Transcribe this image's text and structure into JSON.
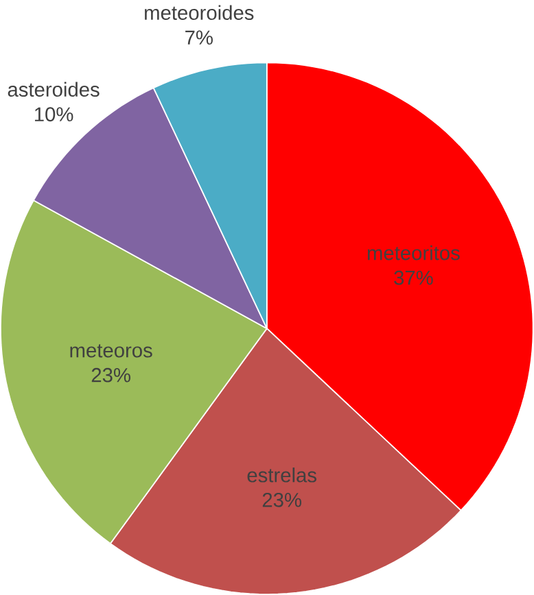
{
  "chart_data": {
    "type": "pie",
    "categories": [
      "meteoritos",
      "estrelas",
      "meteoros",
      "asteroides",
      "meteoroides"
    ],
    "values": [
      37,
      23,
      23,
      10,
      7
    ],
    "value_labels": [
      "37%",
      "23%",
      "23%",
      "10%",
      "7%"
    ],
    "colors": [
      "#ff0000",
      "#c0504d",
      "#9bbb59",
      "#8064a2",
      "#4bacc6"
    ]
  }
}
